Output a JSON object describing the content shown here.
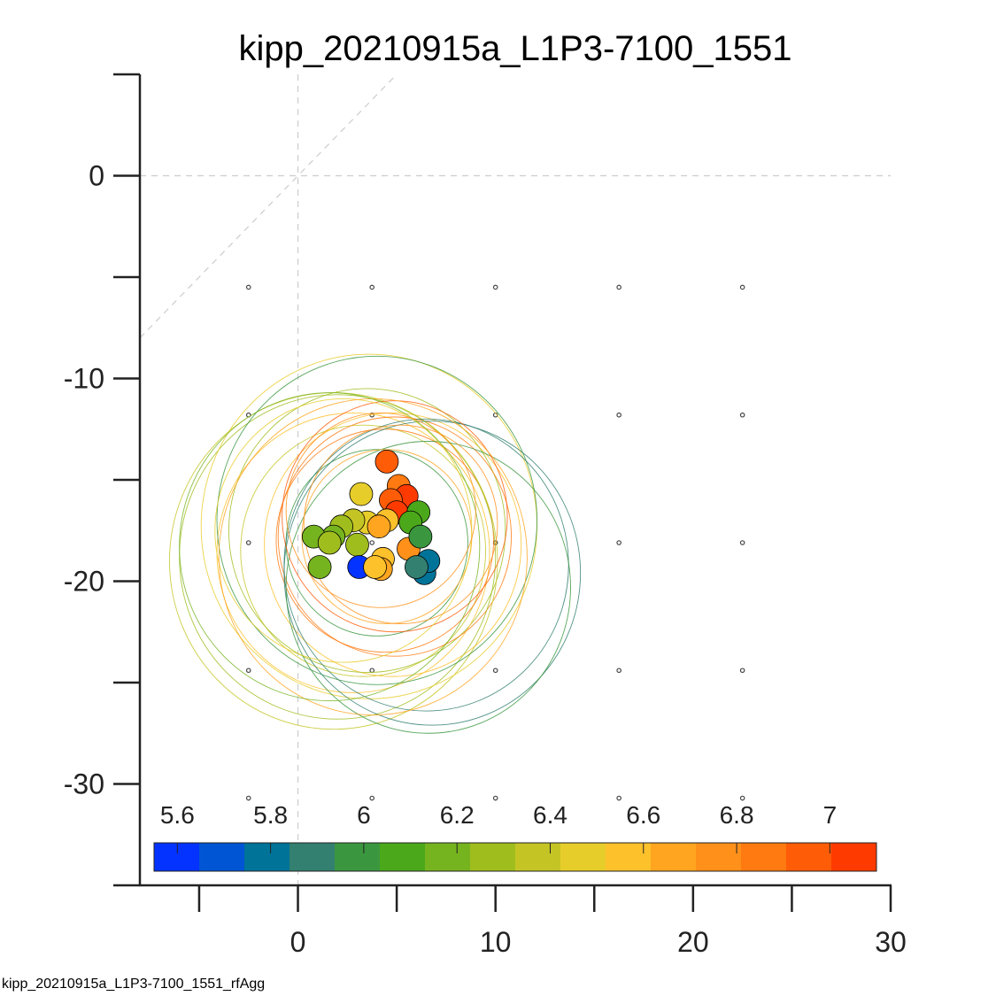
{
  "chart_data": {
    "type": "scatter",
    "title": "kipp_20210915a_L1P3-7100_1551",
    "footer": "kipp_20210915a_L1P3-7100_1551_rfAgg",
    "xlim": [
      -8,
      30
    ],
    "ylim": [
      -35,
      5
    ],
    "x_ticks": [
      -5,
      0,
      5,
      10,
      15,
      20,
      25,
      30
    ],
    "x_tick_labels": [
      "",
      "0",
      "",
      "10",
      "",
      "20",
      "",
      "30"
    ],
    "y_ticks": [
      -35,
      -30,
      -25,
      -20,
      -15,
      -10,
      -5,
      0,
      5
    ],
    "y_tick_labels": [
      "",
      "-30",
      "",
      "-20",
      "",
      "-10",
      "",
      "0",
      ""
    ],
    "reference_lines": {
      "x": 0,
      "y": 0,
      "diagonal": true,
      "style": "dashed",
      "color": "#cccccc"
    },
    "grid_markers": {
      "x": [
        -2.5,
        3.75,
        10,
        16.25,
        22.5
      ],
      "y": [
        -5.5,
        -11.8,
        -18.1,
        -24.4,
        -30.7
      ],
      "color": "#444444"
    },
    "colorbar": {
      "range": [
        5.55,
        7.1
      ],
      "tick_values": [
        5.6,
        5.8,
        6,
        6.2,
        6.4,
        6.6,
        6.8,
        7
      ],
      "tick_labels": [
        "5.6",
        "5.8",
        "6",
        "6.2",
        "6.4",
        "6.6",
        "6.8",
        "7"
      ],
      "colors": [
        "#0433ff",
        "#0055d4",
        "#007399",
        "#338070",
        "#3b973f",
        "#4ba81a",
        "#76b41f",
        "#a0bd1e",
        "#c4c525",
        "#e7cd2a",
        "#fdc12b",
        "#ffa520",
        "#ff901a",
        "#ff7a10",
        "#ff5c08",
        "#ff3a00"
      ]
    },
    "points": [
      {
        "x": 4.5,
        "y": -14.1,
        "c": 6.95
      },
      {
        "x": 5.1,
        "y": -15.3,
        "c": 6.85
      },
      {
        "x": 5.5,
        "y": -15.8,
        "c": 7.05
      },
      {
        "x": 4.7,
        "y": -16.0,
        "c": 7.0
      },
      {
        "x": 5.0,
        "y": -16.6,
        "c": 7.08
      },
      {
        "x": 6.1,
        "y": -16.6,
        "c": 6.05
      },
      {
        "x": 5.7,
        "y": -17.1,
        "c": 6.1
      },
      {
        "x": 3.2,
        "y": -15.7,
        "c": 6.45
      },
      {
        "x": 3.5,
        "y": -17.1,
        "c": 6.5
      },
      {
        "x": 4.5,
        "y": -17.0,
        "c": 6.6
      },
      {
        "x": 4.1,
        "y": -17.3,
        "c": 6.65
      },
      {
        "x": 2.8,
        "y": -17.0,
        "c": 6.35
      },
      {
        "x": 2.2,
        "y": -17.3,
        "c": 6.3
      },
      {
        "x": 1.8,
        "y": -17.8,
        "c": 6.2
      },
      {
        "x": 0.8,
        "y": -17.8,
        "c": 6.15
      },
      {
        "x": 1.6,
        "y": -18.1,
        "c": 6.25
      },
      {
        "x": 3.0,
        "y": -18.2,
        "c": 6.3
      },
      {
        "x": 1.1,
        "y": -19.3,
        "c": 6.15
      },
      {
        "x": 3.1,
        "y": -19.3,
        "c": 5.6
      },
      {
        "x": 4.3,
        "y": -18.9,
        "c": 6.55
      },
      {
        "x": 4.2,
        "y": -19.4,
        "c": 6.62
      },
      {
        "x": 3.9,
        "y": -19.3,
        "c": 6.6
      },
      {
        "x": 5.6,
        "y": -18.4,
        "c": 6.8
      },
      {
        "x": 6.4,
        "y": -19.6,
        "c": 5.8
      },
      {
        "x": 6.6,
        "y": -19.0,
        "c": 5.75
      },
      {
        "x": 6.0,
        "y": -19.3,
        "c": 5.9
      },
      {
        "x": 6.2,
        "y": -17.8,
        "c": 5.95
      }
    ],
    "rf_circles": [
      {
        "cx": 4.0,
        "cy": -18.1,
        "r": 4.6,
        "c": 5.95
      },
      {
        "cx": 3.3,
        "cy": -18.5,
        "r": 6.2,
        "c": 6.4
      },
      {
        "cx": 4.8,
        "cy": -18.2,
        "r": 6.5,
        "c": 6.6
      },
      {
        "cx": 3.5,
        "cy": -17.5,
        "r": 7.0,
        "c": 6.3
      },
      {
        "cx": 2.8,
        "cy": -18.6,
        "r": 6.9,
        "c": 6.55
      },
      {
        "cx": 4.4,
        "cy": -18.0,
        "r": 5.5,
        "c": 6.85
      },
      {
        "cx": 4.9,
        "cy": -17.8,
        "r": 5.9,
        "c": 6.9
      },
      {
        "cx": 2.0,
        "cy": -18.8,
        "r": 8.0,
        "c": 6.25
      },
      {
        "cx": 1.8,
        "cy": -19.0,
        "r": 8.3,
        "c": 6.35
      },
      {
        "cx": 3.6,
        "cy": -17.3,
        "r": 8.5,
        "c": 6.5
      },
      {
        "cx": 4.0,
        "cy": -17.0,
        "r": 8.1,
        "c": 5.95
      },
      {
        "cx": 6.5,
        "cy": -19.2,
        "r": 7.2,
        "c": 5.9
      },
      {
        "cx": 6.8,
        "cy": -19.6,
        "r": 7.5,
        "c": 5.85
      },
      {
        "cx": 6.6,
        "cy": -20.3,
        "r": 7.2,
        "c": 5.95
      },
      {
        "cx": 4.9,
        "cy": -16.8,
        "r": 5.7,
        "c": 6.95
      },
      {
        "cx": 4.5,
        "cy": -17.8,
        "r": 4.3,
        "c": 6.7
      },
      {
        "cx": 2.3,
        "cy": -17.5,
        "r": 6.5,
        "c": 6.45
      },
      {
        "cx": 5.2,
        "cy": -17.2,
        "r": 4.9,
        "c": 6.8
      },
      {
        "cx": 3.8,
        "cy": -18.8,
        "r": 7.8,
        "c": 6.62
      },
      {
        "cx": 1.6,
        "cy": -18.3,
        "r": 7.6,
        "c": 6.2
      },
      {
        "cx": 4.2,
        "cy": -16.5,
        "r": 4.8,
        "c": 6.75
      }
    ]
  }
}
